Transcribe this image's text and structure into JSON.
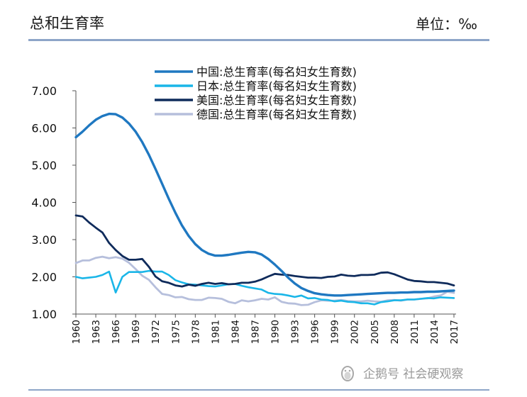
{
  "header": {
    "title": "总和生育率",
    "unit": "单位：‰"
  },
  "watermark": {
    "text": "企鹅号 社会硬观察",
    "icon": "penguin-logo-icon"
  },
  "chart_data": {
    "type": "line",
    "title": "总和生育率",
    "xlabel": "",
    "ylabel": "",
    "ylim": [
      1.0,
      7.0
    ],
    "xlim": [
      1960,
      2017
    ],
    "grid": false,
    "legend_placement": "top-center",
    "y_ticks": [
      "7.00",
      "6.00",
      "5.00",
      "4.00",
      "3.00",
      "2.00",
      "1.00"
    ],
    "y_tick_values": [
      7,
      6,
      5,
      4,
      3,
      2,
      1
    ],
    "x_ticks": [
      "1960",
      "1963",
      "1966",
      "1969",
      "1972",
      "1975",
      "1978",
      "1981",
      "1984",
      "1987",
      "1990",
      "1993",
      "1996",
      "1999",
      "2002",
      "2005",
      "2008",
      "2011",
      "2014",
      "2017"
    ],
    "x_tick_values": [
      1960,
      1963,
      1966,
      1969,
      1972,
      1975,
      1978,
      1981,
      1984,
      1987,
      1990,
      1993,
      1996,
      1999,
      2002,
      2005,
      2008,
      2011,
      2014,
      2017
    ],
    "series": [
      {
        "name": "中国:总生育率(每名妇女生育数)",
        "color": "#1f78c1",
        "x": [
          1960,
          1961,
          1962,
          1963,
          1964,
          1965,
          1966,
          1967,
          1968,
          1969,
          1970,
          1971,
          1972,
          1973,
          1974,
          1975,
          1976,
          1977,
          1978,
          1979,
          1980,
          1981,
          1982,
          1983,
          1984,
          1985,
          1986,
          1987,
          1988,
          1989,
          1990,
          1991,
          1992,
          1993,
          1994,
          1995,
          1996,
          1997,
          1998,
          1999,
          2000,
          2001,
          2002,
          2003,
          2004,
          2005,
          2006,
          2007,
          2008,
          2009,
          2010,
          2011,
          2012,
          2013,
          2014,
          2015,
          2016,
          2017
        ],
        "values": [
          5.75,
          5.9,
          6.07,
          6.22,
          6.32,
          6.38,
          6.37,
          6.28,
          6.12,
          5.9,
          5.62,
          5.28,
          4.9,
          4.5,
          4.1,
          3.72,
          3.38,
          3.1,
          2.88,
          2.72,
          2.62,
          2.57,
          2.57,
          2.59,
          2.62,
          2.65,
          2.67,
          2.66,
          2.6,
          2.48,
          2.33,
          2.16,
          1.98,
          1.82,
          1.7,
          1.62,
          1.56,
          1.53,
          1.51,
          1.5,
          1.5,
          1.51,
          1.52,
          1.53,
          1.54,
          1.55,
          1.56,
          1.57,
          1.57,
          1.58,
          1.58,
          1.59,
          1.59,
          1.6,
          1.6,
          1.61,
          1.62,
          1.63
        ]
      },
      {
        "name": "日本:总生育率(每名妇女生育数)",
        "color": "#1ab6e8",
        "x": [
          1960,
          1961,
          1962,
          1963,
          1964,
          1965,
          1966,
          1967,
          1968,
          1969,
          1970,
          1971,
          1972,
          1973,
          1974,
          1975,
          1976,
          1977,
          1978,
          1979,
          1980,
          1981,
          1982,
          1983,
          1984,
          1985,
          1986,
          1987,
          1988,
          1989,
          1990,
          1991,
          1992,
          1993,
          1994,
          1995,
          1996,
          1997,
          1998,
          1999,
          2000,
          2001,
          2002,
          2003,
          2004,
          2005,
          2006,
          2007,
          2008,
          2009,
          2010,
          2011,
          2012,
          2013,
          2014,
          2015,
          2016,
          2017
        ],
        "values": [
          2.0,
          1.96,
          1.98,
          2.0,
          2.05,
          2.14,
          1.58,
          2.0,
          2.13,
          2.13,
          2.13,
          2.16,
          2.14,
          2.14,
          2.05,
          1.91,
          1.85,
          1.8,
          1.79,
          1.77,
          1.75,
          1.74,
          1.77,
          1.8,
          1.81,
          1.76,
          1.72,
          1.69,
          1.66,
          1.57,
          1.54,
          1.53,
          1.5,
          1.46,
          1.5,
          1.42,
          1.43,
          1.39,
          1.38,
          1.34,
          1.36,
          1.33,
          1.32,
          1.29,
          1.29,
          1.26,
          1.32,
          1.34,
          1.37,
          1.37,
          1.39,
          1.39,
          1.41,
          1.43,
          1.42,
          1.45,
          1.44,
          1.43
        ]
      },
      {
        "name": "美国:总生育率(每名妇女生育数)",
        "color": "#0f2b5b",
        "x": [
          1960,
          1961,
          1962,
          1963,
          1964,
          1965,
          1966,
          1967,
          1968,
          1969,
          1970,
          1971,
          1972,
          1973,
          1974,
          1975,
          1976,
          1977,
          1978,
          1979,
          1980,
          1981,
          1982,
          1983,
          1984,
          1985,
          1986,
          1987,
          1988,
          1989,
          1990,
          1991,
          1992,
          1993,
          1994,
          1995,
          1996,
          1997,
          1998,
          1999,
          2000,
          2001,
          2002,
          2003,
          2004,
          2005,
          2006,
          2007,
          2008,
          2009,
          2010,
          2011,
          2012,
          2013,
          2014,
          2015,
          2016,
          2017
        ],
        "values": [
          3.65,
          3.62,
          3.46,
          3.32,
          3.19,
          2.91,
          2.72,
          2.56,
          2.46,
          2.46,
          2.48,
          2.27,
          2.01,
          1.88,
          1.84,
          1.77,
          1.74,
          1.79,
          1.76,
          1.81,
          1.84,
          1.81,
          1.83,
          1.8,
          1.81,
          1.84,
          1.84,
          1.87,
          1.93,
          2.01,
          2.08,
          2.06,
          2.05,
          2.02,
          2.0,
          1.98,
          1.98,
          1.97,
          2.0,
          2.01,
          2.06,
          2.03,
          2.02,
          2.05,
          2.05,
          2.06,
          2.11,
          2.12,
          2.07,
          2.0,
          1.93,
          1.89,
          1.88,
          1.86,
          1.86,
          1.84,
          1.82,
          1.77
        ]
      },
      {
        "name": "德国:总生育率(每名妇女生育数)",
        "color": "#b6bfdc",
        "x": [
          1960,
          1961,
          1962,
          1963,
          1964,
          1965,
          1966,
          1967,
          1968,
          1969,
          1970,
          1971,
          1972,
          1973,
          1974,
          1975,
          1976,
          1977,
          1978,
          1979,
          1980,
          1981,
          1982,
          1983,
          1984,
          1985,
          1986,
          1987,
          1988,
          1989,
          1990,
          1991,
          1992,
          1993,
          1994,
          1995,
          1996,
          1997,
          1998,
          1999,
          2000,
          2001,
          2002,
          2003,
          2004,
          2005,
          2006,
          2007,
          2008,
          2009,
          2010,
          2011,
          2012,
          2013,
          2014,
          2015,
          2016,
          2017
        ],
        "values": [
          2.37,
          2.44,
          2.44,
          2.51,
          2.54,
          2.5,
          2.53,
          2.49,
          2.38,
          2.21,
          2.03,
          1.92,
          1.72,
          1.54,
          1.51,
          1.45,
          1.46,
          1.4,
          1.38,
          1.38,
          1.44,
          1.43,
          1.41,
          1.33,
          1.29,
          1.37,
          1.34,
          1.37,
          1.41,
          1.39,
          1.45,
          1.33,
          1.29,
          1.28,
          1.24,
          1.25,
          1.32,
          1.37,
          1.36,
          1.36,
          1.38,
          1.35,
          1.34,
          1.34,
          1.36,
          1.34,
          1.33,
          1.37,
          1.38,
          1.36,
          1.39,
          1.39,
          1.41,
          1.42,
          1.47,
          1.5,
          1.6,
          1.57
        ]
      }
    ]
  }
}
